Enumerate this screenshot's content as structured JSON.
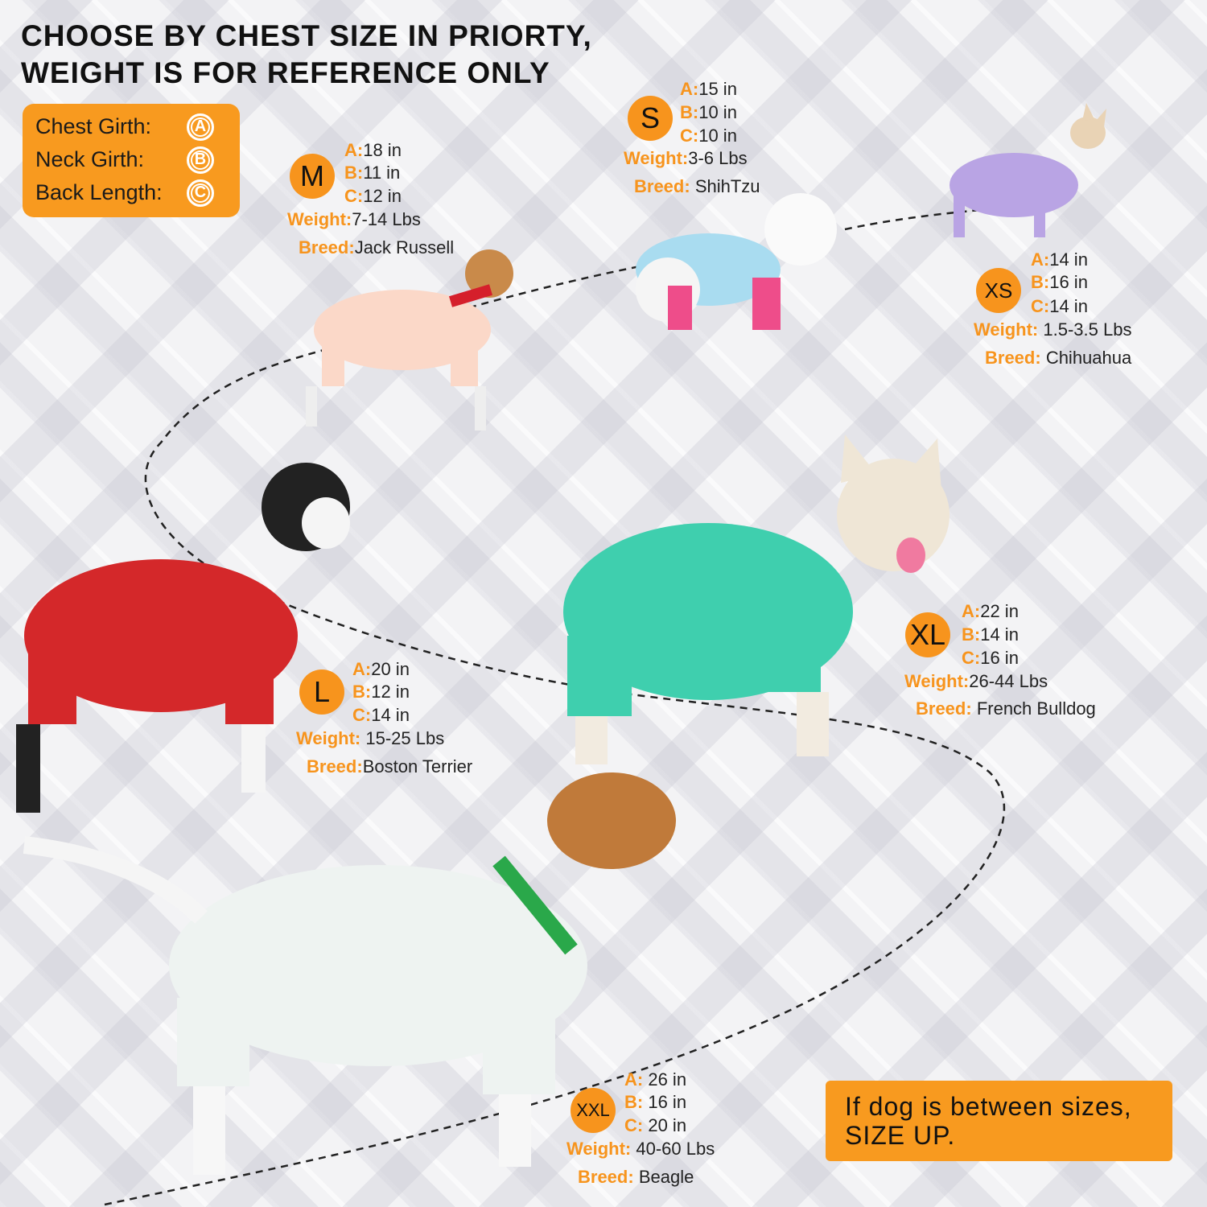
{
  "title": {
    "line1": "CHOOSE BY CHEST SIZE IN PRIORTY,",
    "line2": "WEIGHT IS FOR REFERENCE ONLY"
  },
  "legend": [
    {
      "label": "Chest Girth:",
      "key": "A"
    },
    {
      "label": "Neck Girth:",
      "key": "B"
    },
    {
      "label": "Back Length:",
      "key": "C"
    }
  ],
  "labels": {
    "a": "A:",
    "b": "B:",
    "c": "C:",
    "weight": "Weight:",
    "breed": "Breed:"
  },
  "sizes": {
    "xs": {
      "size": "XS",
      "a": "14 in",
      "b": "16 in",
      "c": "14 in",
      "weight": "1.5-3.5 Lbs",
      "breed": "Chihuahua"
    },
    "s": {
      "size": "S",
      "a": "15 in",
      "b": "10 in",
      "c": "10 in",
      "weight": "3-6 Lbs",
      "breed": "ShihTzu"
    },
    "m": {
      "size": "M",
      "a": "18 in",
      "b": "11 in",
      "c": "12 in",
      "weight": "7-14 Lbs",
      "breed": "Jack Russell"
    },
    "l": {
      "size": "L",
      "a": "20 in",
      "b": "12 in",
      "c": "14 in",
      "weight": "15-25 Lbs",
      "breed": "Boston Terrier"
    },
    "xl": {
      "size": "XL",
      "a": "22 in",
      "b": "14 in",
      "c": "16 in",
      "weight": "26-44 Lbs",
      "breed": "French Bulldog"
    },
    "xxl": {
      "size": "XXL",
      "a": "26 in",
      "b": "16 in",
      "c": "20 in",
      "weight": "40-60 Lbs",
      "breed": "Beagle"
    }
  },
  "tip": {
    "line1": "If dog is between sizes,",
    "line2": "SIZE UP."
  },
  "colors": {
    "accent": "#f7941d"
  }
}
